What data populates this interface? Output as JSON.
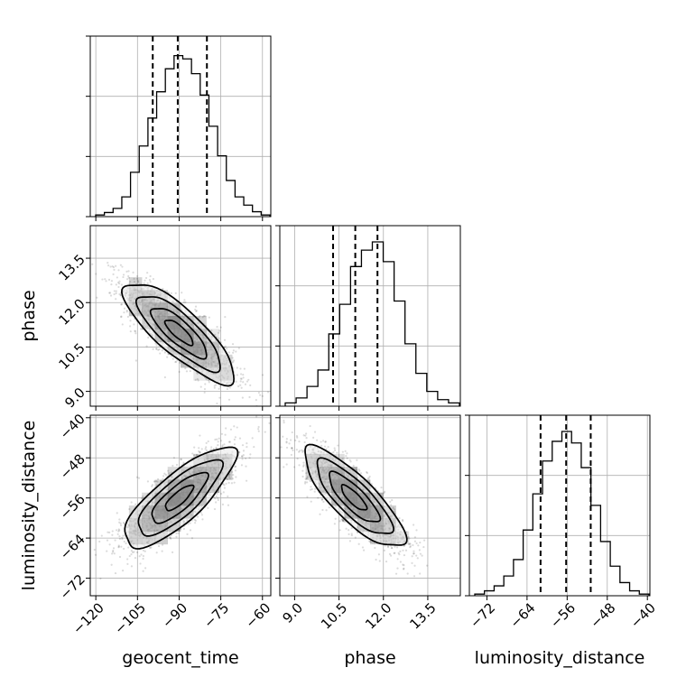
{
  "chart_data": {
    "type": "corner",
    "parameters": [
      "geocent_time",
      "phase",
      "luminosity_distance"
    ],
    "panels": {
      "geocent_time": {
        "range": [
          -122,
          -57
        ],
        "ticks": [
          -120,
          -105,
          -90,
          -75,
          -60
        ],
        "tick_labels": [
          "−120",
          "−105",
          "−90",
          "−75",
          "−60"
        ],
        "quantiles": [
          -99.5,
          -90.5,
          -80.0
        ],
        "hist": [
          0.01,
          0.025,
          0.05,
          0.12,
          0.27,
          0.43,
          0.6,
          0.76,
          0.9,
          0.98,
          0.96,
          0.87,
          0.74,
          0.55,
          0.37,
          0.22,
          0.12,
          0.07,
          0.03,
          0.01
        ]
      },
      "phase": {
        "range": [
          8.5,
          14.6
        ],
        "ticks": [
          9.0,
          10.5,
          12.0,
          13.5
        ],
        "tick_labels": [
          "9.0",
          "10.5",
          "12.0",
          "13.5"
        ],
        "quantiles": [
          10.3,
          11.05,
          11.8
        ],
        "hist": [
          0.02,
          0.05,
          0.12,
          0.22,
          0.44,
          0.62,
          0.85,
          0.95,
          1.0,
          0.88,
          0.64,
          0.38,
          0.2,
          0.09,
          0.04,
          0.02
        ]
      },
      "luminosity_distance": {
        "range": [
          -75.5,
          -39.5
        ],
        "ticks": [
          -72,
          -64,
          -56,
          -48,
          -40
        ],
        "tick_labels": [
          "−72",
          "−64",
          "−56",
          "−48",
          "−40"
        ],
        "quantiles": [
          -61.3,
          -56.2,
          -51.3
        ],
        "hist": [
          0.01,
          0.03,
          0.06,
          0.12,
          0.22,
          0.4,
          0.62,
          0.82,
          0.94,
          1.0,
          0.93,
          0.78,
          0.55,
          0.33,
          0.18,
          0.08,
          0.03,
          0.01
        ]
      }
    },
    "pairs": [
      {
        "x": "geocent_time",
        "y": "phase",
        "center": [
          -90.0,
          11.0
        ],
        "sd": [
          10.0,
          0.85
        ],
        "rho": -0.82
      },
      {
        "x": "geocent_time",
        "y": "luminosity_distance",
        "center": [
          -90.0,
          -56.0
        ],
        "sd": [
          10.0,
          5.0
        ],
        "rho": 0.8
      },
      {
        "x": "phase",
        "y": "luminosity_distance",
        "center": [
          11.0,
          -56.0
        ],
        "sd": [
          0.85,
          5.0
        ],
        "rho": -0.82
      }
    ],
    "contour_sigmas": [
      0.5,
      1.0,
      1.5,
      2.0
    ],
    "grid": true,
    "title": "",
    "legend": "none"
  }
}
